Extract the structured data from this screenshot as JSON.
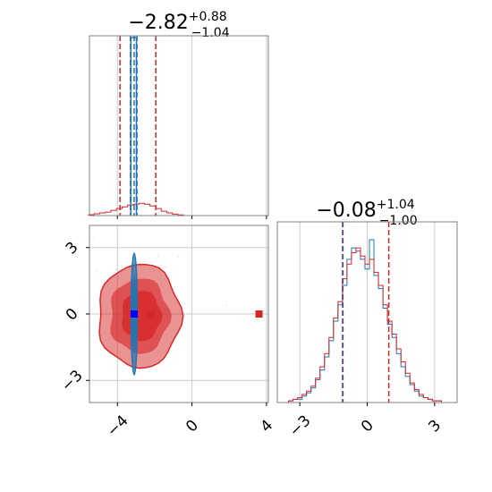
{
  "chart_data": {
    "type": "corner",
    "colors": {
      "broad": "#d62728",
      "narrow": "#1f77b4",
      "truth": "#0000ff",
      "grid": "#cccccc",
      "axes": "#808080"
    },
    "params": [
      {
        "key": "p0",
        "median": "−2.82",
        "plus": "+0.88",
        "minus": "−1.04",
        "range": [
          -5.5,
          4.1
        ],
        "ticks": [
          -4,
          0,
          4
        ],
        "tick_labels": [
          "−4",
          "0",
          "4"
        ],
        "quantiles_broad": [
          -3.86,
          -2.82,
          -1.94
        ],
        "quantiles_narrow": [
          -3.3,
          -3.1,
          -2.95
        ]
      },
      {
        "key": "p1",
        "median": "−0.08",
        "plus": "+1.04",
        "minus": "−1.00",
        "range": [
          -4.0,
          4.0
        ],
        "ticks": [
          -3,
          0,
          3
        ],
        "tick_labels": [
          "−3",
          "0",
          "3"
        ],
        "quantiles_broad": [
          -1.08,
          -0.08,
          0.96
        ],
        "quantiles_narrow": [
          -1.1,
          0.0,
          1.0
        ]
      }
    ],
    "joint": {
      "broad_center": [
        -2.82,
        -0.08
      ],
      "broad_sigma": [
        1.0,
        1.0
      ],
      "narrow_center": [
        -3.1,
        0.0
      ],
      "narrow_sigma": [
        0.1,
        1.0
      ],
      "outliers": [
        [
          3.6,
          0.0
        ],
        [
          -2.2,
          0.0
        ]
      ],
      "truth": [
        -3.1,
        0.0
      ]
    },
    "hist_p1_x": [
      -3.6,
      -3.4,
      -3.2,
      -3.0,
      -2.8,
      -2.6,
      -2.4,
      -2.2,
      -2.0,
      -1.8,
      -1.6,
      -1.4,
      -1.2,
      -1.0,
      -0.8,
      -0.6,
      -0.4,
      -0.2,
      0.0,
      0.2,
      0.4,
      0.6,
      0.8,
      1.0,
      1.2,
      1.4,
      1.6,
      1.8,
      2.0,
      2.2,
      2.4,
      2.6,
      2.8,
      3.0,
      3.2,
      3.4
    ],
    "hist_p1_broad": [
      0,
      0.01,
      0.02,
      0.03,
      0.05,
      0.07,
      0.1,
      0.15,
      0.22,
      0.3,
      0.4,
      0.52,
      0.62,
      0.76,
      0.85,
      0.92,
      0.95,
      0.9,
      0.85,
      0.88,
      0.8,
      0.72,
      0.6,
      0.5,
      0.42,
      0.33,
      0.25,
      0.18,
      0.12,
      0.08,
      0.05,
      0.03,
      0.02,
      0.01,
      0.01,
      0
    ],
    "hist_p1_narrow": [
      0,
      0.01,
      0.02,
      0.02,
      0.04,
      0.06,
      0.09,
      0.14,
      0.2,
      0.28,
      0.38,
      0.5,
      0.6,
      0.72,
      0.88,
      0.95,
      0.93,
      0.88,
      0.82,
      1.0,
      0.78,
      0.7,
      0.58,
      0.48,
      0.4,
      0.3,
      0.22,
      0.16,
      0.11,
      0.07,
      0.04,
      0.03,
      0.02,
      0.01,
      0.01,
      0
    ],
    "hist_p0_broad_x": [
      -5.4,
      -5.1,
      -4.8,
      -4.5,
      -4.2,
      -3.9,
      -3.6,
      -3.3,
      -3.0,
      -2.7,
      -2.4,
      -2.1,
      -1.8,
      -1.5,
      -1.2,
      -0.9,
      -0.6
    ],
    "hist_p0_broad": [
      0.005,
      0.01,
      0.015,
      0.02,
      0.03,
      0.04,
      0.05,
      0.06,
      0.065,
      0.07,
      0.065,
      0.055,
      0.04,
      0.025,
      0.015,
      0.008,
      0.004
    ]
  }
}
